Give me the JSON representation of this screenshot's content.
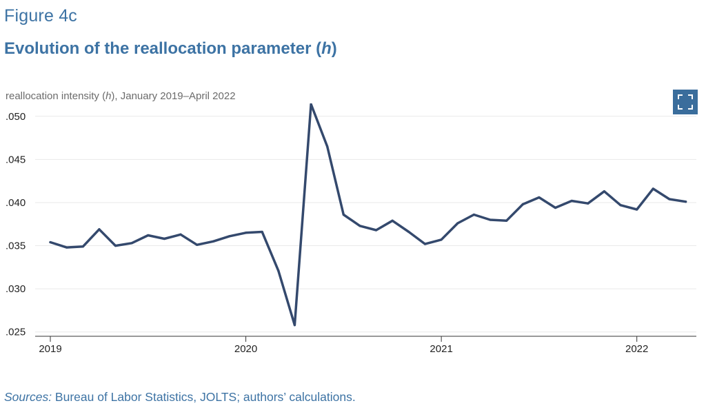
{
  "header": {
    "figure_label": "Figure 4c",
    "title_prefix": "Evolution of the reallocation parameter (",
    "title_var": "h",
    "title_suffix": ")"
  },
  "toolbar": {
    "expand_icon": "expand-icon"
  },
  "colors": {
    "line": "#34496d",
    "accent": "#3d73a4",
    "button": "#3a6d9c",
    "grid": "#e9e9e9"
  },
  "chart_data": {
    "type": "line",
    "subtitle_prefix": "reallocation intensity (",
    "subtitle_var": "h",
    "subtitle_suffix": "), January 2019–April 2022",
    "xlabel": "",
    "ylabel": "reallocation intensity (h)",
    "ylim": [
      0.0245,
      0.0515
    ],
    "y_ticks": [
      0.025,
      0.03,
      0.035,
      0.04,
      0.045,
      0.05
    ],
    "y_tick_labels": [
      ".025",
      ".030",
      ".035",
      ".040",
      ".045",
      ".050"
    ],
    "x_tick_labels": [
      "2019",
      "2020",
      "2021",
      "2022"
    ],
    "x_tick_positions": [
      0,
      12,
      24,
      36
    ],
    "x_range": [
      -0.2,
      39.8
    ],
    "grid": true,
    "series": [
      {
        "name": "reallocation intensity (h)",
        "values": [
          0.0354,
          0.0348,
          0.0349,
          0.0369,
          0.035,
          0.0353,
          0.0362,
          0.0358,
          0.0363,
          0.0351,
          0.0355,
          0.0361,
          0.0365,
          0.0366,
          0.0321,
          0.0258,
          0.0514,
          0.0465,
          0.0386,
          0.0373,
          0.0368,
          0.0379,
          0.0366,
          0.0352,
          0.0357,
          0.0376,
          0.0386,
          0.038,
          0.0379,
          0.0398,
          0.0406,
          0.0394,
          0.0402,
          0.0399,
          0.0413,
          0.0397,
          0.0392,
          0.0416,
          0.0404,
          0.0401
        ]
      }
    ]
  },
  "footer": {
    "sources_label": "Sources:",
    "sources_text": " Bureau of Labor Statistics, JOLTS; authors’ calculations."
  }
}
